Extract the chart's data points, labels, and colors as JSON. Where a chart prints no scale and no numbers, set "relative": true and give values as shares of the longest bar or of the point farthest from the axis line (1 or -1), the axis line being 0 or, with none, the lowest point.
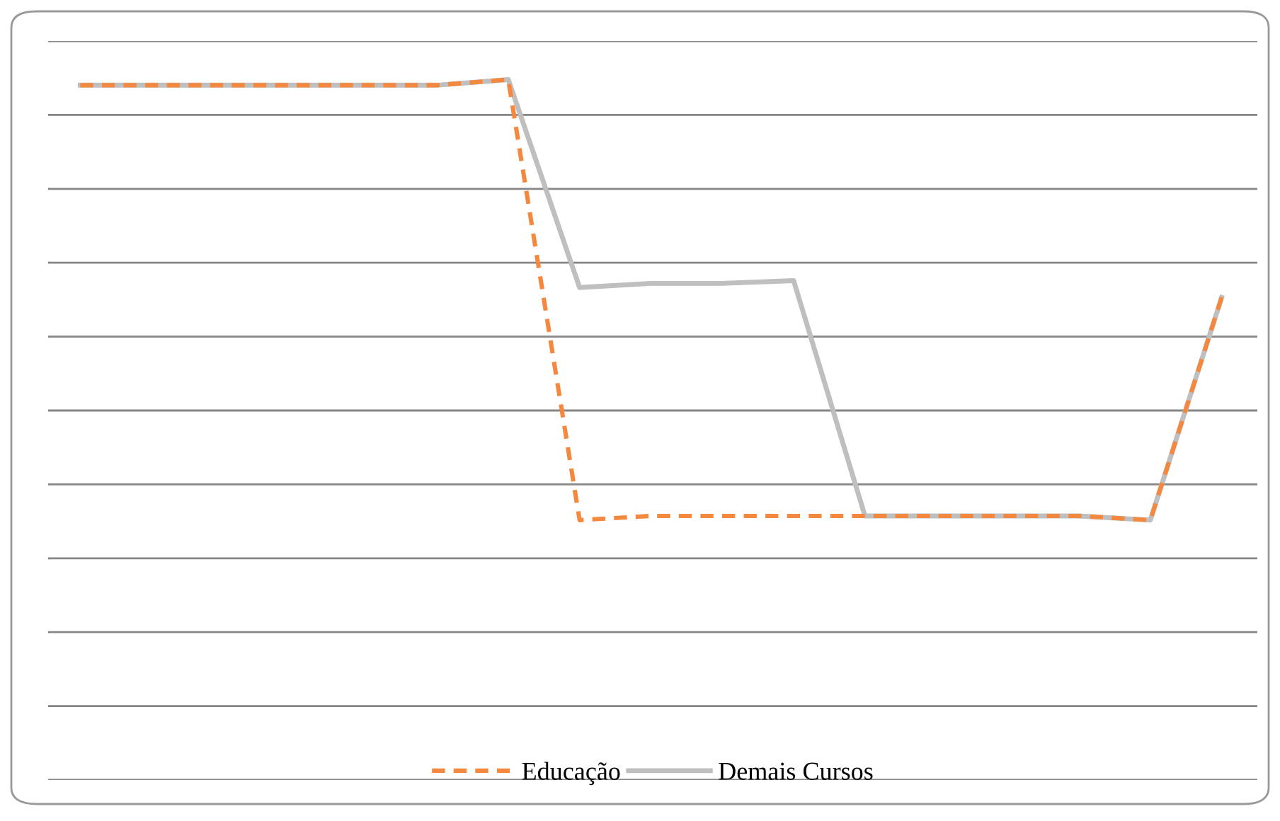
{
  "chart_data": {
    "type": "line",
    "relative": true,
    "categories": [
      null,
      null,
      null,
      null,
      null,
      null,
      null,
      null,
      null,
      null,
      null,
      null,
      null,
      null,
      null,
      null,
      null
    ],
    "series": [
      {
        "name": "Demais Cursos",
        "color": "#bfbfbf",
        "line_style": "solid",
        "values": [
          0.992,
          0.992,
          0.992,
          0.992,
          0.992,
          0.992,
          1.0,
          0.703,
          0.709,
          0.709,
          0.713,
          0.377,
          0.377,
          0.377,
          0.377,
          0.371,
          0.689
        ]
      },
      {
        "name": "Educação",
        "color": "#f4883f",
        "line_style": "dashed",
        "values": [
          0.992,
          0.992,
          0.992,
          0.992,
          0.992,
          0.992,
          1.0,
          0.371,
          0.377,
          0.377,
          0.377,
          0.377,
          0.377,
          0.377,
          0.377,
          0.371,
          0.689
        ]
      }
    ],
    "grid": "y",
    "legend": "bottom",
    "marker": "none"
  }
}
